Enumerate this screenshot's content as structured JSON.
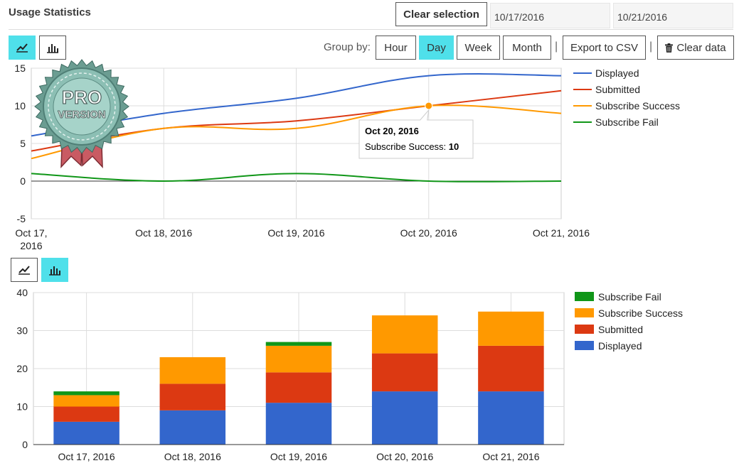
{
  "header": {
    "title": "Usage Statistics",
    "clear_selection": "Clear selection",
    "date_from": "10/17/2016",
    "date_to": "10/21/2016"
  },
  "toolbar": {
    "group_by_label": "Group by:",
    "groups": [
      "Hour",
      "Day",
      "Week",
      "Month"
    ],
    "active_group": "Day",
    "export_label": "Export to CSV",
    "separator": "|",
    "clear_data_label": "Clear data",
    "line_icon": "line-chart-icon",
    "bar_icon": "bar-chart-icon",
    "trash_icon": "trash-icon"
  },
  "badge": {
    "line1": "PRO",
    "line2": "VERSION"
  },
  "colors": {
    "displayed": "#3366cc",
    "submitted": "#dc3912",
    "success": "#ff9900",
    "fail": "#109618",
    "accent": "#4fe0ea"
  },
  "chart_data": [
    {
      "type": "line",
      "categories": [
        "Oct 17, 2016",
        "Oct 18, 2016",
        "Oct 19, 2016",
        "Oct 20, 2016",
        "Oct 21, 2016"
      ],
      "x_tick_labels": [
        [
          "Oct 17,",
          "2016"
        ],
        [
          "Oct 18, 2016"
        ],
        [
          "Oct 19, 2016"
        ],
        [
          "Oct 20, 2016"
        ],
        [
          "Oct 21, 2016"
        ]
      ],
      "series": [
        {
          "name": "Displayed",
          "values": [
            6,
            9,
            11,
            14,
            14
          ]
        },
        {
          "name": "Submitted",
          "values": [
            4,
            7,
            8,
            10,
            12
          ]
        },
        {
          "name": "Subscribe Success",
          "values": [
            3,
            7,
            7,
            10,
            9
          ]
        },
        {
          "name": "Subscribe Fail",
          "values": [
            1,
            0,
            1,
            0,
            0
          ]
        }
      ],
      "ylim": [
        -5,
        15
      ],
      "yticks": [
        -5,
        0,
        5,
        10,
        15
      ],
      "grid": true,
      "legend": "right",
      "tooltip": {
        "title": "Oct 20, 2016",
        "label": "Subscribe Success:",
        "value": "10",
        "series_index": 2,
        "point_index": 3
      }
    },
    {
      "type": "bar",
      "stacked": true,
      "categories": [
        "Oct 17, 2016",
        "Oct 18, 2016",
        "Oct 19, 2016",
        "Oct 20, 2016",
        "Oct 21, 2016"
      ],
      "series": [
        {
          "name": "Displayed",
          "values": [
            6,
            9,
            11,
            14,
            14
          ]
        },
        {
          "name": "Submitted",
          "values": [
            4,
            7,
            8,
            10,
            12
          ]
        },
        {
          "name": "Subscribe Success",
          "values": [
            3,
            7,
            7,
            10,
            9
          ]
        },
        {
          "name": "Subscribe Fail",
          "values": [
            1,
            0,
            1,
            0,
            0
          ]
        }
      ],
      "legend_order": [
        "Subscribe Fail",
        "Subscribe Success",
        "Submitted",
        "Displayed"
      ],
      "ylim": [
        0,
        40
      ],
      "yticks": [
        0,
        10,
        20,
        30,
        40
      ],
      "grid": true,
      "legend": "right"
    }
  ]
}
